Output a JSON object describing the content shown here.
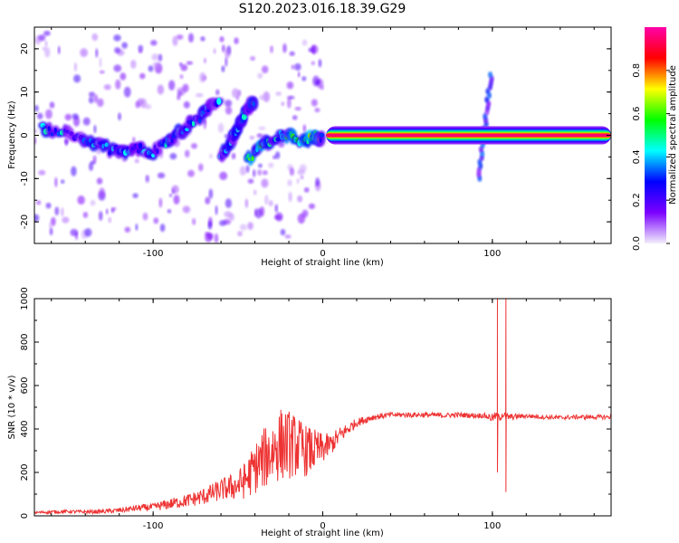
{
  "figure": {
    "title": "S120.2023.016.18.39.G29"
  },
  "chart_data": [
    {
      "type": "heatmap",
      "title": "",
      "xlabel": "Height of straight line (km)",
      "ylabel": "Frequency (Hz)",
      "xlim": [
        -170,
        170
      ],
      "ylim": [
        -25,
        25
      ],
      "xticks": [
        -100,
        0,
        100
      ],
      "yticks": [
        -20,
        -10,
        0,
        10,
        20
      ],
      "colorbar": {
        "label": "Normalized spectral amplitude",
        "range": [
          0,
          1
        ],
        "ticks": [
          0.0,
          0.2,
          0.4,
          0.6,
          0.8
        ],
        "colormap": [
          "#f2f0fb",
          "#7b00ff",
          "#0000ff",
          "#00ffff",
          "#00ff00",
          "#ffff00",
          "#ff0000",
          "#ff00aa"
        ]
      },
      "features": [
        {
          "name": "zero-frequency line",
          "x_range": [
            2,
            170
          ],
          "frequency": 0,
          "amplitude": 1.0
        },
        {
          "name": "curved arm 1",
          "points": [
            [
              -165,
              1.5
            ],
            [
              -150,
              0
            ],
            [
              -135,
              -2
            ],
            [
              -120,
              -4
            ],
            [
              -110,
              -3
            ],
            [
              -100,
              -4
            ],
            [
              -90,
              -1
            ],
            [
              -80,
              2
            ],
            [
              -70,
              5
            ],
            [
              -60,
              9
            ]
          ],
          "amplitude": 0.4
        },
        {
          "name": "curved arm 2",
          "points": [
            [
              -60,
              -5
            ],
            [
              -55,
              -2
            ],
            [
              -50,
              2
            ],
            [
              -45,
              6
            ],
            [
              -40,
              8
            ]
          ],
          "amplitude": 0.45
        },
        {
          "name": "converging arm",
          "points": [
            [
              -45,
              -6
            ],
            [
              -35,
              -2
            ],
            [
              -25,
              0
            ],
            [
              -15,
              -1
            ],
            [
              -5,
              -0.5
            ],
            [
              0,
              0
            ]
          ],
          "amplitude": 0.55
        },
        {
          "name": "spike near 100 km",
          "x": 100,
          "f_range": [
            -10,
            14
          ],
          "amplitude": 0.35
        }
      ]
    },
    {
      "type": "line",
      "title": "",
      "xlabel": "Height of straight line (km)",
      "ylabel": "SNR (10 * v/v)",
      "xlim": [
        -170,
        170
      ],
      "ylim": [
        0,
        1000
      ],
      "xticks": [
        -100,
        0,
        100
      ],
      "yticks": [
        0,
        200,
        400,
        600,
        800,
        1000
      ],
      "grid": false,
      "series": [
        {
          "color": "#ee3333",
          "x": [
            -170,
            -160,
            -150,
            -140,
            -130,
            -120,
            -110,
            -100,
            -90,
            -80,
            -70,
            -60,
            -50,
            -45,
            -40,
            -35,
            -30,
            -25,
            -20,
            -15,
            -10,
            -5,
            0,
            5,
            10,
            15,
            20,
            30,
            40,
            50,
            60,
            70,
            80,
            90,
            95,
            100,
            102,
            104,
            106,
            108,
            110,
            120,
            130,
            140,
            150,
            160,
            170
          ],
          "y": [
            15,
            18,
            20,
            18,
            20,
            25,
            35,
            40,
            55,
            70,
            90,
            120,
            140,
            170,
            220,
            260,
            300,
            330,
            330,
            320,
            300,
            300,
            310,
            330,
            370,
            400,
            430,
            455,
            465,
            465,
            465,
            462,
            465,
            462,
            462,
            450,
            460,
            450,
            470,
            455,
            455,
            460,
            455,
            452,
            455,
            455,
            455
          ],
          "noise": [
            5,
            8,
            8,
            8,
            10,
            12,
            15,
            18,
            25,
            30,
            40,
            50,
            70,
            90,
            120,
            140,
            160,
            170,
            160,
            140,
            120,
            100,
            70,
            50,
            40,
            30,
            20,
            15,
            12,
            12,
            12,
            12,
            12,
            12,
            12,
            20,
            20,
            20,
            20,
            20,
            15,
            10,
            10,
            10,
            10,
            10,
            10
          ],
          "spikes": [
            {
              "x": 103,
              "y": 1000
            },
            {
              "x": 103,
              "y": 200
            },
            {
              "x": 108,
              "y": 1000
            },
            {
              "x": 108,
              "y": 110
            }
          ]
        }
      ]
    }
  ]
}
